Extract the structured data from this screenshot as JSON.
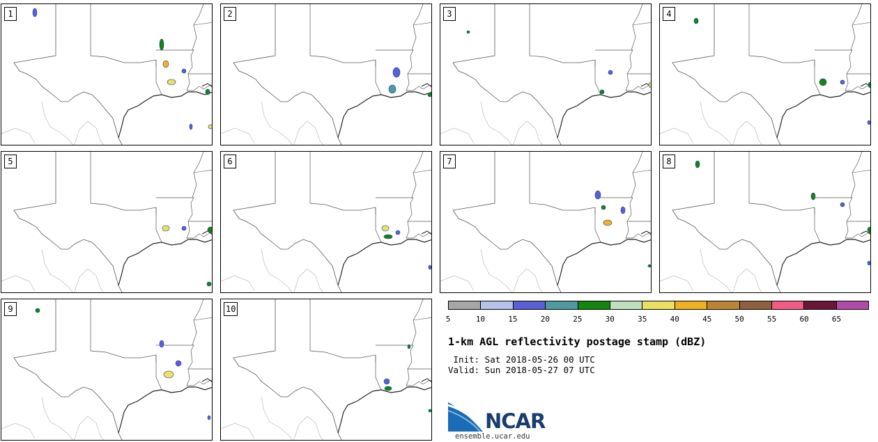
{
  "panels": [
    {
      "label": "1"
    },
    {
      "label": "2"
    },
    {
      "label": "3"
    },
    {
      "label": "4"
    },
    {
      "label": "5"
    },
    {
      "label": "6"
    },
    {
      "label": "7"
    },
    {
      "label": "8"
    },
    {
      "label": "9"
    },
    {
      "label": "10"
    }
  ],
  "colorbar": {
    "colors": [
      "#a6a6a6",
      "#b7c2ec",
      "#5a5fd6",
      "#4e9aa0",
      "#13860f",
      "#c0dfbf",
      "#ece063",
      "#eeb121",
      "#bb8433",
      "#8e603f",
      "#f25b84",
      "#6b1638",
      "#b04ca7"
    ],
    "ticks": [
      "5",
      "10",
      "15",
      "20",
      "25",
      "30",
      "35",
      "40",
      "45",
      "50",
      "55",
      "60",
      "65"
    ]
  },
  "title": "1-km AGL reflectivity postage stamp (dBZ)",
  "init": " Init: Sat 2018-05-26 00 UTC",
  "valid": "Valid: Sun 2018-05-27 07 UTC",
  "logo_text": "NCAR",
  "url": "ensemble.ucar.edu"
}
